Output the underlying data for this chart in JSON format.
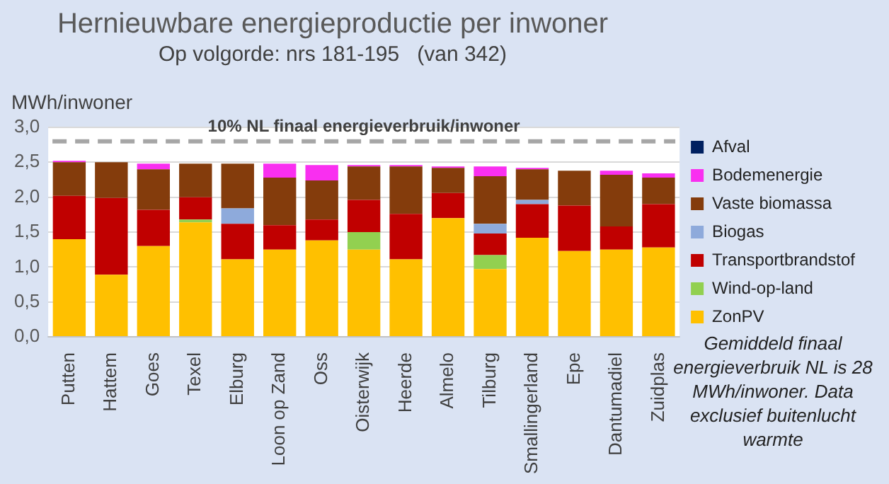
{
  "chart_data": {
    "type": "bar",
    "stacked": true,
    "title": "Hernieuwbare energieproductie per inwoner",
    "subtitle": "Op volgorde: nrs 181-195   (van 342)",
    "ylabel": "MWh/inwoner",
    "categories": [
      "Putten",
      "Hattem",
      "Goes",
      "Texel",
      "Elburg",
      "Loon op Zand",
      "Oss",
      "Oisterwijk",
      "Heerde",
      "Almelo",
      "Tilburg",
      "Smallingerland",
      "Epe",
      "Dantumadiel",
      "Zuidplas"
    ],
    "series": [
      {
        "name": "ZonPV",
        "color": "#ffc000",
        "values": [
          1.4,
          0.89,
          1.3,
          1.64,
          1.11,
          1.25,
          1.38,
          1.25,
          1.11,
          1.7,
          0.97,
          1.42,
          1.23,
          1.25,
          1.28
        ]
      },
      {
        "name": "Wind-op-land",
        "color": "#92d050",
        "values": [
          0,
          0,
          0,
          0.04,
          0,
          0,
          0,
          0.25,
          0,
          0,
          0.2,
          0,
          0,
          0,
          0
        ]
      },
      {
        "name": "Transportbrandstof",
        "color": "#c00000",
        "values": [
          0.62,
          1.1,
          0.52,
          0.32,
          0.51,
          0.35,
          0.3,
          0.46,
          0.65,
          0.36,
          0.31,
          0.48,
          0.65,
          0.33,
          0.62
        ]
      },
      {
        "name": "Biogas",
        "color": "#8eaadb",
        "values": [
          0,
          0,
          0,
          0,
          0.22,
          0,
          0,
          0,
          0,
          0,
          0.14,
          0.06,
          0,
          0,
          0
        ]
      },
      {
        "name": "Vaste biomassa",
        "color": "#843c0c",
        "values": [
          0.48,
          0.51,
          0.58,
          0.48,
          0.64,
          0.68,
          0.56,
          0.48,
          0.68,
          0.36,
          0.68,
          0.44,
          0.5,
          0.74,
          0.38
        ]
      },
      {
        "name": "Bodemenergie",
        "color": "#f92ff0",
        "values": [
          0.02,
          0,
          0.08,
          0,
          0,
          0.2,
          0.22,
          0.02,
          0.02,
          0.02,
          0.14,
          0.02,
          0,
          0.06,
          0.06
        ]
      },
      {
        "name": "Afval",
        "color": "#002060",
        "values": [
          0,
          0,
          0,
          0,
          0,
          0,
          0,
          0,
          0,
          0,
          0,
          0,
          0,
          0,
          0
        ]
      }
    ],
    "ylim": [
      0,
      3
    ],
    "yticks": [
      {
        "value": 0,
        "label": "0,0"
      },
      {
        "value": 0.5,
        "label": "0,5"
      },
      {
        "value": 1,
        "label": "1,0"
      },
      {
        "value": 1.5,
        "label": "1,5"
      },
      {
        "value": 2,
        "label": "2,0"
      },
      {
        "value": 2.5,
        "label": "2,5"
      },
      {
        "value": 3,
        "label": "3,0"
      }
    ],
    "grid": "y",
    "legend": "right",
    "ref_lines": [
      {
        "axis": "y",
        "value": 2.8,
        "label": "10% NL finaal energieverbruik/inwoner",
        "color": "#a6a6a6",
        "line_style": "dashed"
      }
    ],
    "annotations": [
      "Gemiddeld finaal energieverbruik NL is 28 MWh/inwoner. Data exclusief buitenlucht warmte"
    ]
  }
}
